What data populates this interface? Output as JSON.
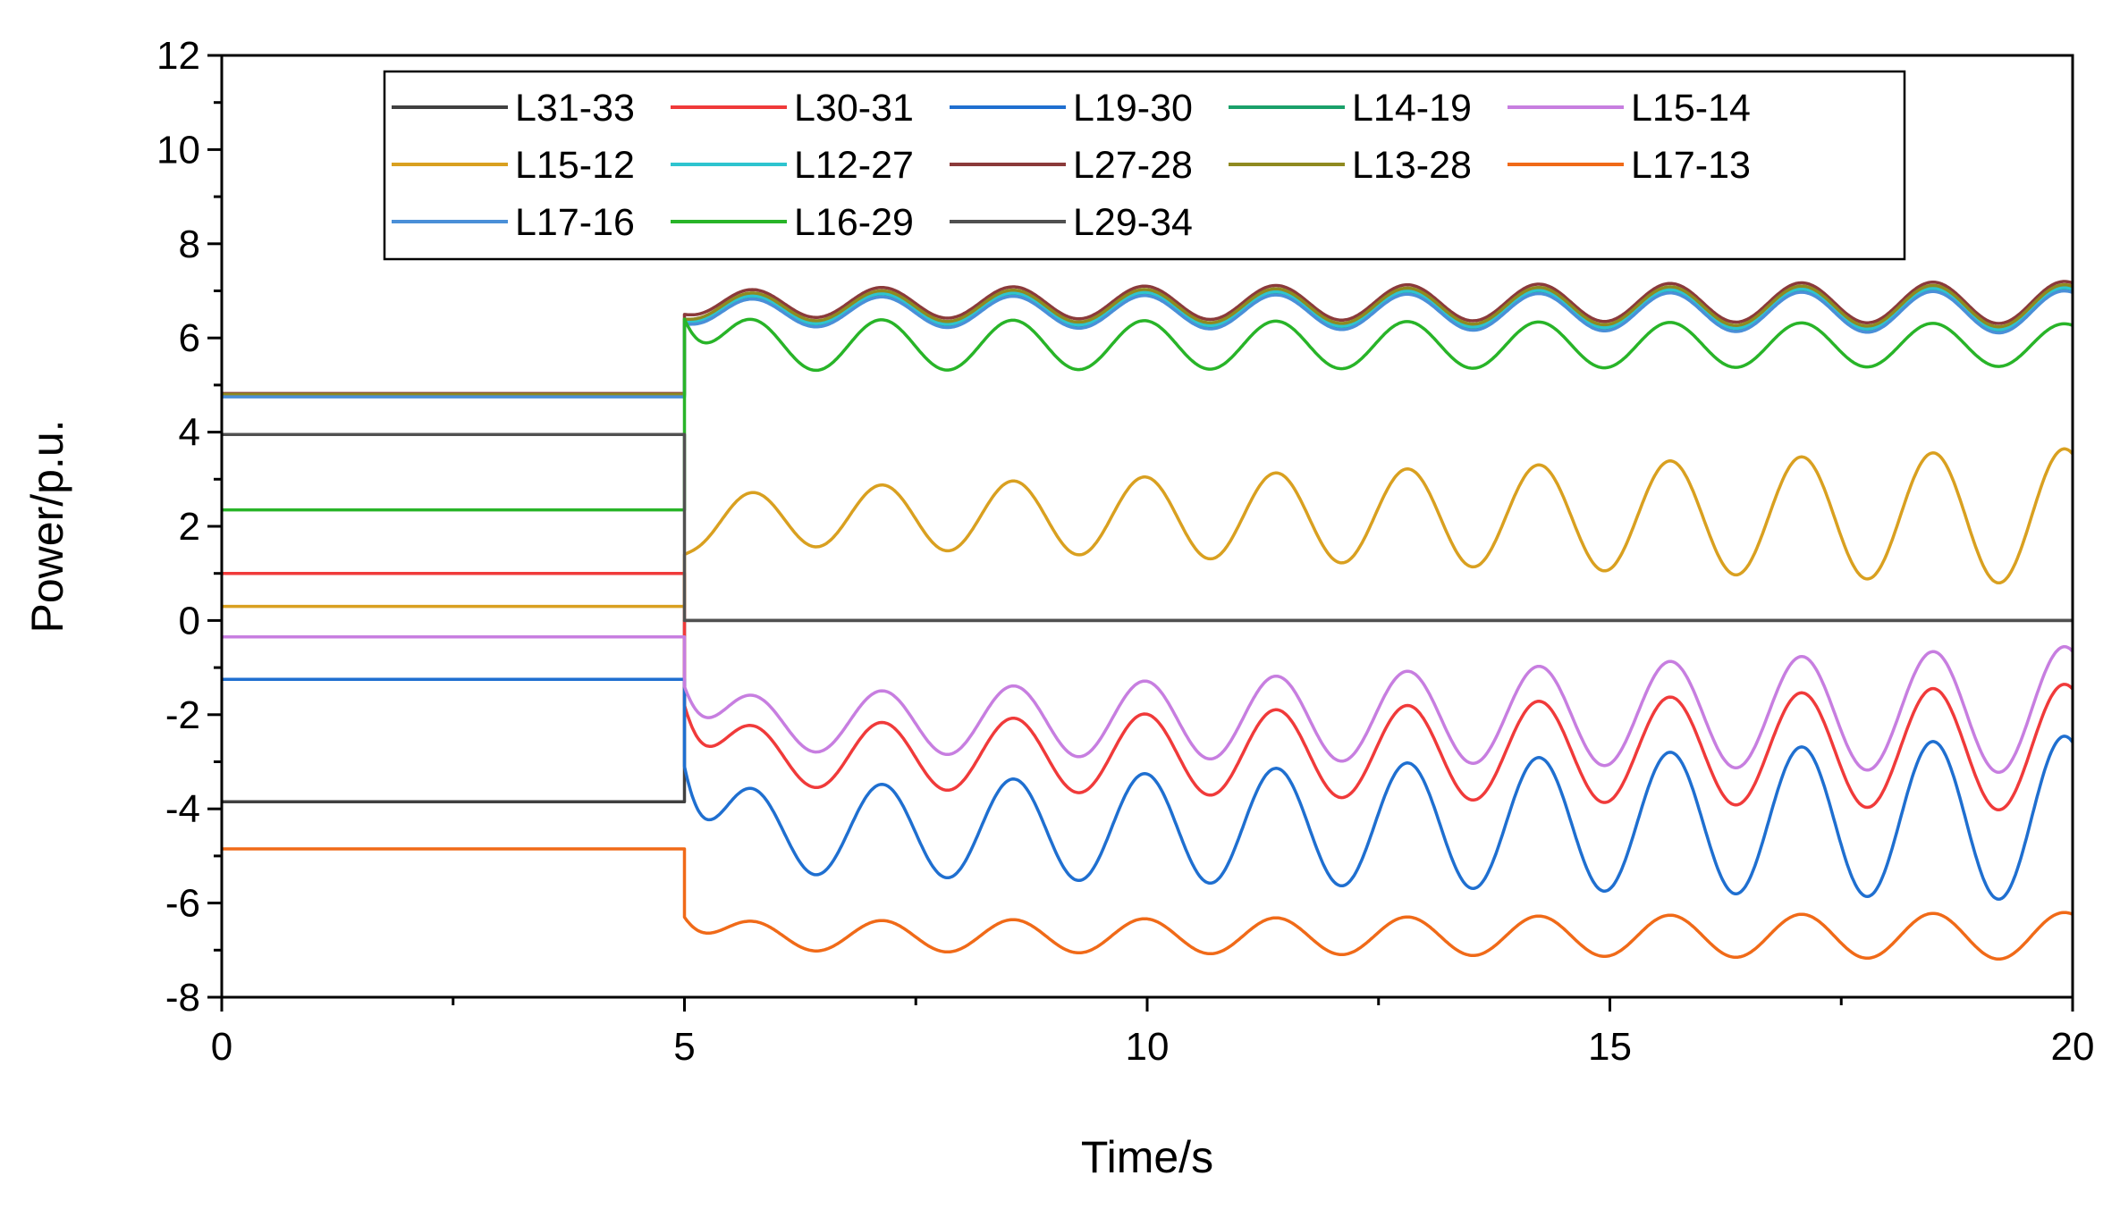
{
  "chart_data": {
    "type": "line",
    "title": "",
    "xlabel": "Time/s",
    "ylabel": "Power/p.u.",
    "xlim": [
      0,
      20
    ],
    "ylim": [
      -8,
      12
    ],
    "xticks": [
      "0",
      "5",
      "10",
      "15",
      "20"
    ],
    "yticks": [
      "-8",
      "-6",
      "-4",
      "-2",
      "0",
      "2",
      "4",
      "6",
      "8",
      "10",
      "12"
    ],
    "grid": false,
    "legend_position": "top",
    "series": [
      {
        "name": "L31-33",
        "color": "#404040",
        "pre": -3.85,
        "kind": "const",
        "post": 0.0
      },
      {
        "name": "L30-31",
        "color": "#f03a3a",
        "pre": 1.0,
        "kind": "osc",
        "start": -1.8,
        "base": -2.9,
        "amp": 0.6,
        "ampEnd": 1.35,
        "drift": 0.2
      },
      {
        "name": "L19-30",
        "color": "#1f6fd0",
        "pre": -1.25,
        "kind": "osc",
        "start": -3.1,
        "base": -4.5,
        "amp": 0.85,
        "ampEnd": 1.75,
        "drift": 0.3
      },
      {
        "name": "L14-19",
        "color": "#1aa06a",
        "pre": 4.8,
        "kind": "osc",
        "start": 6.3,
        "base": 6.6,
        "amp": 0.3,
        "ampEnd": 0.45,
        "drift": 0.0
      },
      {
        "name": "L15-14",
        "color": "#c77ee0",
        "pre": -0.35,
        "kind": "osc",
        "start": -1.4,
        "base": -2.2,
        "amp": 0.55,
        "ampEnd": 1.35,
        "drift": 0.3
      },
      {
        "name": "L15-12",
        "color": "#d9a020",
        "pre": 0.3,
        "kind": "osc",
        "start": 1.4,
        "base": 2.2,
        "amp": 0.55,
        "ampEnd": 1.45,
        "drift": 0.0
      },
      {
        "name": "L12-27",
        "color": "#2ec4cf",
        "pre": 4.78,
        "kind": "osc",
        "start": 6.35,
        "base": 6.62,
        "amp": 0.3,
        "ampEnd": 0.45,
        "drift": 0.0
      },
      {
        "name": "L27-28",
        "color": "#8b3a3a",
        "pre": 4.82,
        "kind": "osc",
        "start": 6.5,
        "base": 6.75,
        "amp": 0.3,
        "ampEnd": 0.45,
        "drift": 0.0
      },
      {
        "name": "L13-28",
        "color": "#8f8a20",
        "pre": 4.8,
        "kind": "osc",
        "start": 6.4,
        "base": 6.68,
        "amp": 0.3,
        "ampEnd": 0.45,
        "drift": 0.0
      },
      {
        "name": "L17-13",
        "color": "#f06a18",
        "pre": -4.85,
        "kind": "osc",
        "start": -6.3,
        "base": -6.7,
        "amp": 0.3,
        "ampEnd": 0.5,
        "drift": 0.0
      },
      {
        "name": "L17-16",
        "color": "#4a8fd8",
        "pre": 4.75,
        "kind": "osc",
        "start": 6.3,
        "base": 6.55,
        "amp": 0.3,
        "ampEnd": 0.45,
        "drift": 0.0
      },
      {
        "name": "L16-29",
        "color": "#28b428",
        "pre": 2.35,
        "kind": "osc",
        "start": 6.4,
        "base": 5.85,
        "amp": 0.55,
        "ampEnd": 0.45,
        "drift": 0.0
      },
      {
        "name": "L29-34",
        "color": "#505050",
        "pre": 3.95,
        "kind": "const",
        "post": 0.0
      }
    ]
  }
}
